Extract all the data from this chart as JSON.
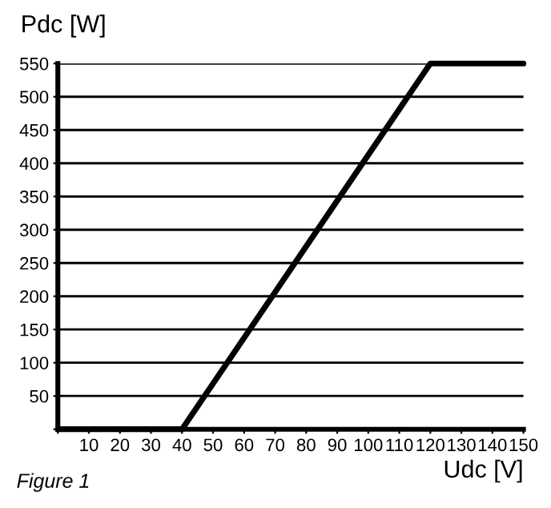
{
  "chart_data": {
    "type": "line",
    "xlabel": "Udc [V]",
    "ylabel": "Pdc [W]",
    "annotations": [
      "Figure 1"
    ],
    "x": [
      0,
      40,
      120,
      150
    ],
    "series": [
      {
        "color": "#000000",
        "values": [
          0,
          0,
          550,
          550
        ]
      }
    ],
    "xlim": [
      0,
      150
    ],
    "ylim": [
      0,
      550
    ],
    "xticks": [
      {
        "value": 0,
        "label": null
      },
      10,
      20,
      30,
      40,
      50,
      60,
      70,
      80,
      90,
      100,
      110,
      120,
      130,
      140,
      150
    ],
    "yticks": [
      {
        "value": 0,
        "label": null
      },
      50,
      100,
      150,
      200,
      250,
      300,
      350,
      400,
      450,
      500,
      550
    ],
    "grid": "y",
    "marker": "none",
    "line_style": "solid"
  }
}
